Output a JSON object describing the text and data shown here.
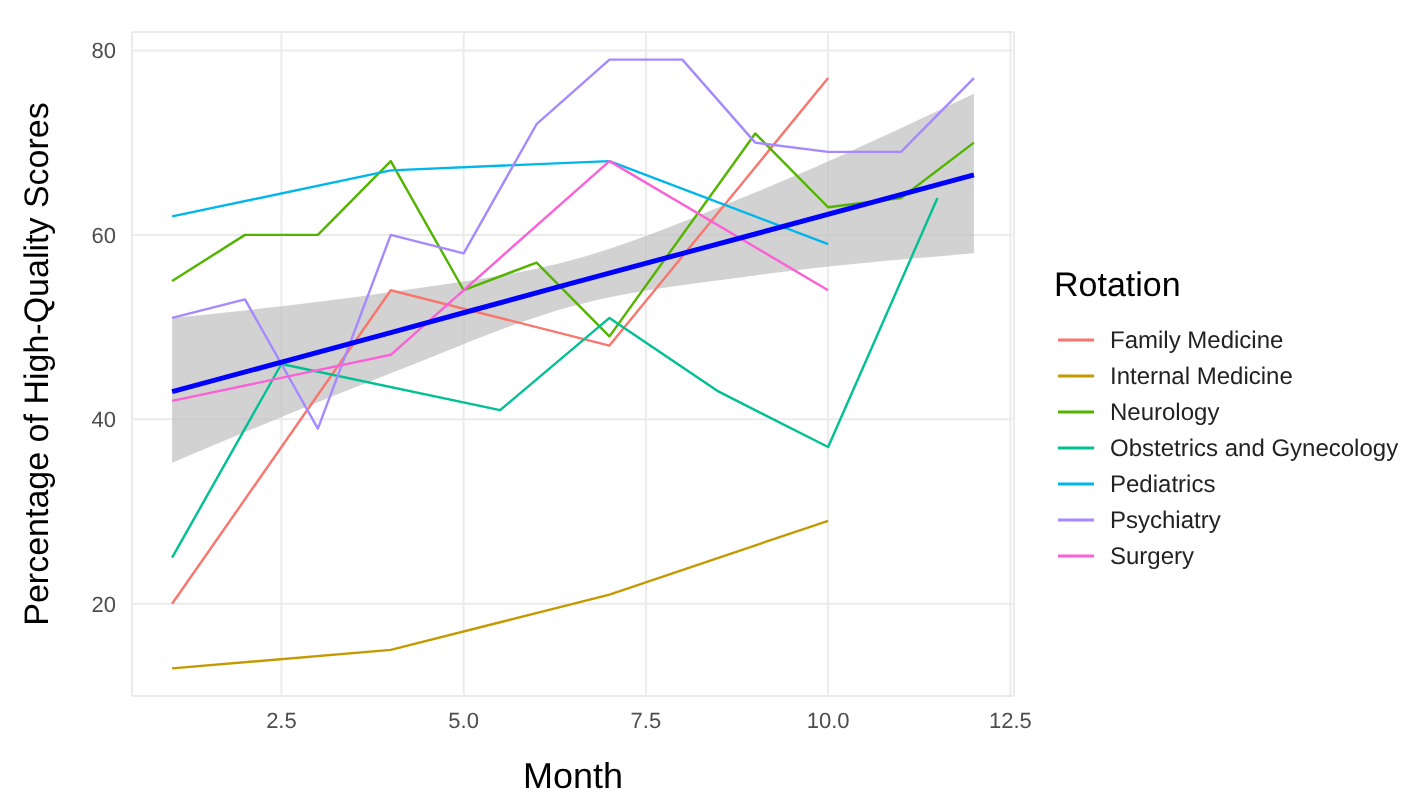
{
  "chart_data": {
    "type": "line",
    "xlabel": "Month",
    "ylabel": "Percentage of High-Quality Scores",
    "legend_title": "Rotation",
    "legend": "right",
    "grid": true,
    "marker": "none",
    "line_style": "solid",
    "xlim": [
      0.45,
      12.55
    ],
    "xticks": [
      2.5,
      {
        "value": 5,
        "label": "5.0"
      },
      7.5,
      {
        "value": 10,
        "label": "10.0"
      },
      12.5
    ],
    "ylim": [
      10,
      82
    ],
    "yticks": [
      20,
      40,
      60,
      80
    ],
    "series": [
      {
        "name": "Family Medicine",
        "color": "#f8766d",
        "x": [
          1,
          4,
          7,
          10
        ],
        "values": [
          20,
          54,
          48,
          77
        ]
      },
      {
        "name": "Internal Medicine",
        "color": "#c49a00",
        "x": [
          1,
          4,
          5.5,
          7,
          10
        ],
        "values": [
          13,
          15,
          18,
          21,
          29
        ]
      },
      {
        "name": "Neurology",
        "color": "#53b400",
        "x": [
          1,
          2,
          3,
          4,
          5,
          6,
          7,
          9,
          10,
          11,
          12
        ],
        "values": [
          55,
          60,
          60,
          68,
          54,
          57,
          49,
          71,
          63,
          64,
          70
        ]
      },
      {
        "name": "Obstetrics and Gynecology",
        "color": "#00c094",
        "x": [
          1,
          2.5,
          5.5,
          7,
          8.5,
          10,
          11.5
        ],
        "values": [
          25,
          46,
          41,
          51,
          43,
          37,
          64
        ]
      },
      {
        "name": "Pediatrics",
        "color": "#00b6eb",
        "x": [
          1,
          4,
          7,
          10
        ],
        "values": [
          62,
          67,
          68,
          59
        ]
      },
      {
        "name": "Psychiatry",
        "color": "#a58aff",
        "x": [
          1,
          2,
          3,
          4,
          5,
          6,
          7,
          8,
          9,
          10,
          11,
          12
        ],
        "values": [
          51,
          53,
          39,
          60,
          58,
          72,
          79,
          79,
          70,
          69,
          69,
          77
        ]
      },
      {
        "name": "Surgery",
        "color": "#fb61d7",
        "x": [
          1,
          4,
          7,
          10
        ],
        "values": [
          42,
          47,
          68,
          54
        ]
      },
      {
        "type": "line",
        "color": "#0000ff",
        "x": [
          1,
          4,
          6.5,
          9,
          12
        ],
        "values": [
          43,
          49.4,
          54.8,
          60.1,
          66.5
        ],
        "lower": [
          35.3,
          45,
          52.3,
          55.6,
          58
        ],
        "upper": [
          51,
          53.8,
          57.3,
          64.6,
          75.3
        ]
      }
    ]
  }
}
